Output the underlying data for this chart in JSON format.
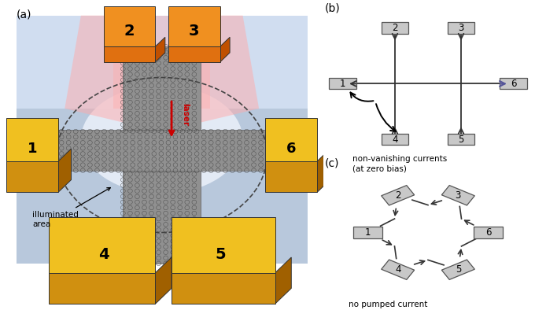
{
  "panel_a_label": "(a)",
  "panel_b_label": "(b)",
  "panel_c_label": "(c)",
  "panel_b_caption1": "non-vanishing currents",
  "panel_b_caption2": "(at zero bias)",
  "panel_c_caption": "no pumped current",
  "terminal_color": "#c8c8c8",
  "terminal_edge_color": "#555555",
  "line_color": "#333333",
  "background_color": "#ffffff",
  "bg_blue": "#b8c8dc",
  "bg_blue2": "#c8d8e8",
  "platform_color": "#c0d0e4",
  "graphene_color": "#909090",
  "graphene_edge": "#606060",
  "grid_color": "#404040",
  "pink_color": "#ffaaaa",
  "orange_top": "#f09020",
  "orange_mid": "#e07010",
  "orange_dark": "#c05000",
  "gold_top": "#f0c020",
  "gold_mid": "#d09010",
  "gold_dark": "#a06000",
  "laser_color": "#cc0000",
  "laser_label": "laser",
  "illuminated_label": "illuminated\narea"
}
